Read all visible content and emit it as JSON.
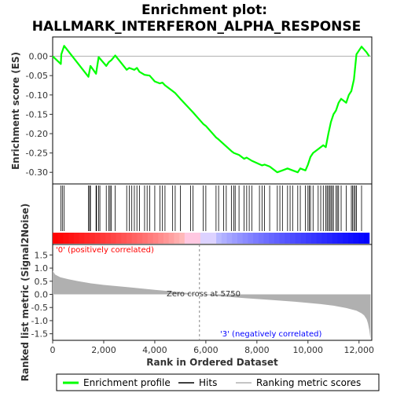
{
  "chart_data": {
    "type": "line",
    "title_line1": "Enrichment plot:",
    "title_line2": "HALLMARK_INTERFERON_ALPHA_RESPONSE",
    "top_panel": {
      "ylabel": "Enrichment score (ES)",
      "ylim": [
        -0.33,
        0.05
      ],
      "yticks": [
        "0.00",
        "-0.05",
        "-0.10",
        "-0.15",
        "-0.20",
        "-0.25",
        "-0.30"
      ],
      "ytick_values": [
        0.0,
        -0.05,
        -0.1,
        -0.15,
        -0.2,
        -0.25,
        -0.3
      ],
      "series": {
        "name": "Enrichment profile",
        "color": "#00ff00",
        "x": [
          0,
          320,
          340,
          450,
          1400,
          1480,
          1700,
          1800,
          2100,
          2200,
          2300,
          2450,
          2900,
          3000,
          3200,
          3300,
          3400,
          3600,
          3800,
          4000,
          4200,
          4300,
          4400,
          4700,
          4800,
          5000,
          5500,
          5900,
          6000,
          6400,
          6500,
          7000,
          7100,
          7300,
          7500,
          7600,
          7800,
          8200,
          8300,
          8500,
          8800,
          9000,
          9200,
          9400,
          9600,
          9700,
          9900,
          10000,
          10100,
          10200,
          10400,
          10600,
          10700,
          10800,
          10900,
          11000,
          11100,
          11200,
          11300,
          11500,
          11600,
          11700,
          11800,
          11900,
          12100,
          12300,
          12400
        ],
        "y": [
          0.0,
          -0.02,
          0.005,
          0.027,
          -0.053,
          -0.025,
          -0.045,
          -0.002,
          -0.025,
          -0.015,
          -0.01,
          0.002,
          -0.035,
          -0.03,
          -0.035,
          -0.03,
          -0.04,
          -0.048,
          -0.05,
          -0.065,
          -0.07,
          -0.068,
          -0.075,
          -0.09,
          -0.095,
          -0.11,
          -0.145,
          -0.175,
          -0.18,
          -0.21,
          -0.215,
          -0.245,
          -0.25,
          -0.255,
          -0.265,
          -0.262,
          -0.27,
          -0.282,
          -0.28,
          -0.285,
          -0.3,
          -0.295,
          -0.29,
          -0.295,
          -0.3,
          -0.29,
          -0.295,
          -0.28,
          -0.26,
          -0.25,
          -0.24,
          -0.23,
          -0.235,
          -0.2,
          -0.17,
          -0.15,
          -0.14,
          -0.12,
          -0.11,
          -0.12,
          -0.1,
          -0.09,
          -0.06,
          0.005,
          0.025,
          0.01,
          0.0
        ]
      }
    },
    "hits_panel": {
      "name": "Hits",
      "positions": [
        320,
        380,
        450,
        1400,
        1450,
        1480,
        1700,
        1720,
        1800,
        1850,
        2100,
        2200,
        2250,
        2300,
        2450,
        2900,
        3000,
        3100,
        3200,
        3300,
        3400,
        3600,
        3700,
        3800,
        4000,
        4200,
        4300,
        4400,
        4700,
        4800,
        5000,
        5400,
        5500,
        5900,
        6000,
        6400,
        6500,
        6700,
        6800,
        7000,
        7100,
        7150,
        7300,
        7500,
        7600,
        7700,
        7800,
        8100,
        8200,
        8300,
        8500,
        8800,
        8900,
        9000,
        9200,
        9300,
        9400,
        9600,
        9700,
        9900,
        10000,
        10050,
        10100,
        10200,
        10400,
        10500,
        10600,
        10700,
        10750,
        10800,
        10850,
        10900,
        10950,
        11000,
        11100,
        11150,
        11200,
        11300,
        11500,
        11700,
        11750,
        11800,
        11850,
        11900,
        12100
      ]
    },
    "bottom_panel": {
      "ylabel": "Ranked list metric (Signal2Noise)",
      "ylim": [
        -1.75,
        1.9
      ],
      "yticks": [
        "1.5",
        "1.0",
        "0.5",
        "0.0",
        "-0.5",
        "-1.0",
        "-1.5"
      ],
      "ytick_values": [
        1.5,
        1.0,
        0.5,
        0.0,
        -0.5,
        -1.0,
        -1.5
      ],
      "x": [
        0,
        100,
        300,
        600,
        1000,
        1500,
        2000,
        3000,
        4000,
        5000,
        5750,
        6500,
        7500,
        8500,
        9500,
        10500,
        11000,
        11500,
        11900,
        12100,
        12200,
        12300,
        12350,
        12400,
        12450
      ],
      "values": [
        0.9,
        0.75,
        0.65,
        0.58,
        0.5,
        0.42,
        0.36,
        0.27,
        0.17,
        0.08,
        0.0,
        -0.07,
        -0.14,
        -0.21,
        -0.28,
        -0.37,
        -0.43,
        -0.52,
        -0.62,
        -0.72,
        -0.8,
        -0.95,
        -1.1,
        -1.35,
        -1.7
      ],
      "zero_cross_label": "Zero cross at 5750",
      "zero_cross": 5750,
      "pos_label": "'0' (positively correlated)",
      "neg_label": "'3' (negatively correlated)",
      "pos_color": "#ff0000",
      "neg_color": "#0000ff",
      "fill_color": "#b0b0b0"
    },
    "xaxis": {
      "xlabel": "Rank in Ordered Dataset",
      "xlim": [
        0,
        12500
      ],
      "xticks": [
        "0",
        "2,000",
        "4,000",
        "6,000",
        "8,000",
        "10,000",
        "12,000"
      ],
      "xtick_values": [
        0,
        2000,
        4000,
        6000,
        8000,
        10000,
        12000
      ]
    },
    "legend": {
      "placement": "bottom",
      "entries": [
        {
          "label": "Enrichment profile",
          "color": "#00ff00"
        },
        {
          "label": "Hits",
          "color": "#000000"
        },
        {
          "label": "Ranking metric scores",
          "color": "#b0b0b0"
        }
      ]
    }
  }
}
